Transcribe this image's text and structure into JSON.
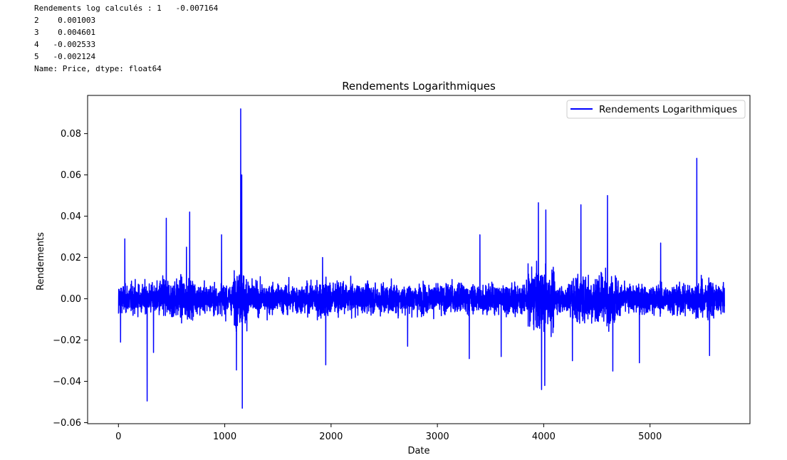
{
  "console": {
    "lines": [
      "Rendements log calculés : 1   -0.007164",
      "2    0.001003",
      "3    0.004601",
      "4   -0.002533",
      "5   -0.002124",
      "Name: Price, dtype: float64"
    ]
  },
  "chart_data": {
    "type": "line",
    "title": "Rendements Logarithmiques",
    "xlabel": "Date",
    "ylabel": "Rendements",
    "xlim": [
      -290,
      5940
    ],
    "ylim": [
      -0.0605,
      0.0985
    ],
    "x_ticks": [
      0,
      1000,
      2000,
      3000,
      4000,
      5000
    ],
    "x_tick_labels": [
      "0",
      "1000",
      "2000",
      "3000",
      "4000",
      "5000"
    ],
    "y_ticks": [
      -0.06,
      -0.04,
      -0.02,
      0.0,
      0.02,
      0.04,
      0.06,
      0.08
    ],
    "y_tick_labels": [
      "−0.06",
      "−0.04",
      "−0.02",
      "0.00",
      "0.02",
      "0.04",
      "0.06",
      "0.08"
    ],
    "grid": false,
    "legend_position": "top-right",
    "series": [
      {
        "name": "Rendements Logarithmiques",
        "color": "#0000ff",
        "n_points": 5700,
        "first_values": [
          {
            "x": 1,
            "y": -0.007164
          },
          {
            "x": 2,
            "y": 0.001003
          },
          {
            "x": 3,
            "y": 0.004601
          },
          {
            "x": 4,
            "y": -0.002533
          },
          {
            "x": 5,
            "y": -0.002124
          }
        ],
        "notable_points": [
          {
            "x": 20,
            "y": -0.021
          },
          {
            "x": 60,
            "y": 0.029
          },
          {
            "x": 270,
            "y": -0.0495
          },
          {
            "x": 330,
            "y": -0.026
          },
          {
            "x": 450,
            "y": 0.039
          },
          {
            "x": 640,
            "y": 0.025
          },
          {
            "x": 670,
            "y": 0.042
          },
          {
            "x": 970,
            "y": 0.031
          },
          {
            "x": 1110,
            "y": -0.0345
          },
          {
            "x": 1150,
            "y": 0.092
          },
          {
            "x": 1160,
            "y": 0.06
          },
          {
            "x": 1165,
            "y": -0.053
          },
          {
            "x": 1920,
            "y": 0.02
          },
          {
            "x": 1950,
            "y": -0.032
          },
          {
            "x": 2720,
            "y": -0.023
          },
          {
            "x": 3300,
            "y": -0.029
          },
          {
            "x": 3400,
            "y": 0.031
          },
          {
            "x": 3600,
            "y": -0.028
          },
          {
            "x": 3950,
            "y": 0.0465
          },
          {
            "x": 3980,
            "y": -0.044
          },
          {
            "x": 4020,
            "y": 0.043
          },
          {
            "x": 4010,
            "y": -0.042
          },
          {
            "x": 4270,
            "y": -0.03
          },
          {
            "x": 4350,
            "y": 0.0455
          },
          {
            "x": 4600,
            "y": 0.05
          },
          {
            "x": 4650,
            "y": -0.035
          },
          {
            "x": 4900,
            "y": -0.031
          },
          {
            "x": 5100,
            "y": 0.027
          },
          {
            "x": 5440,
            "y": 0.068
          },
          {
            "x": 5560,
            "y": -0.0275
          }
        ]
      }
    ]
  }
}
